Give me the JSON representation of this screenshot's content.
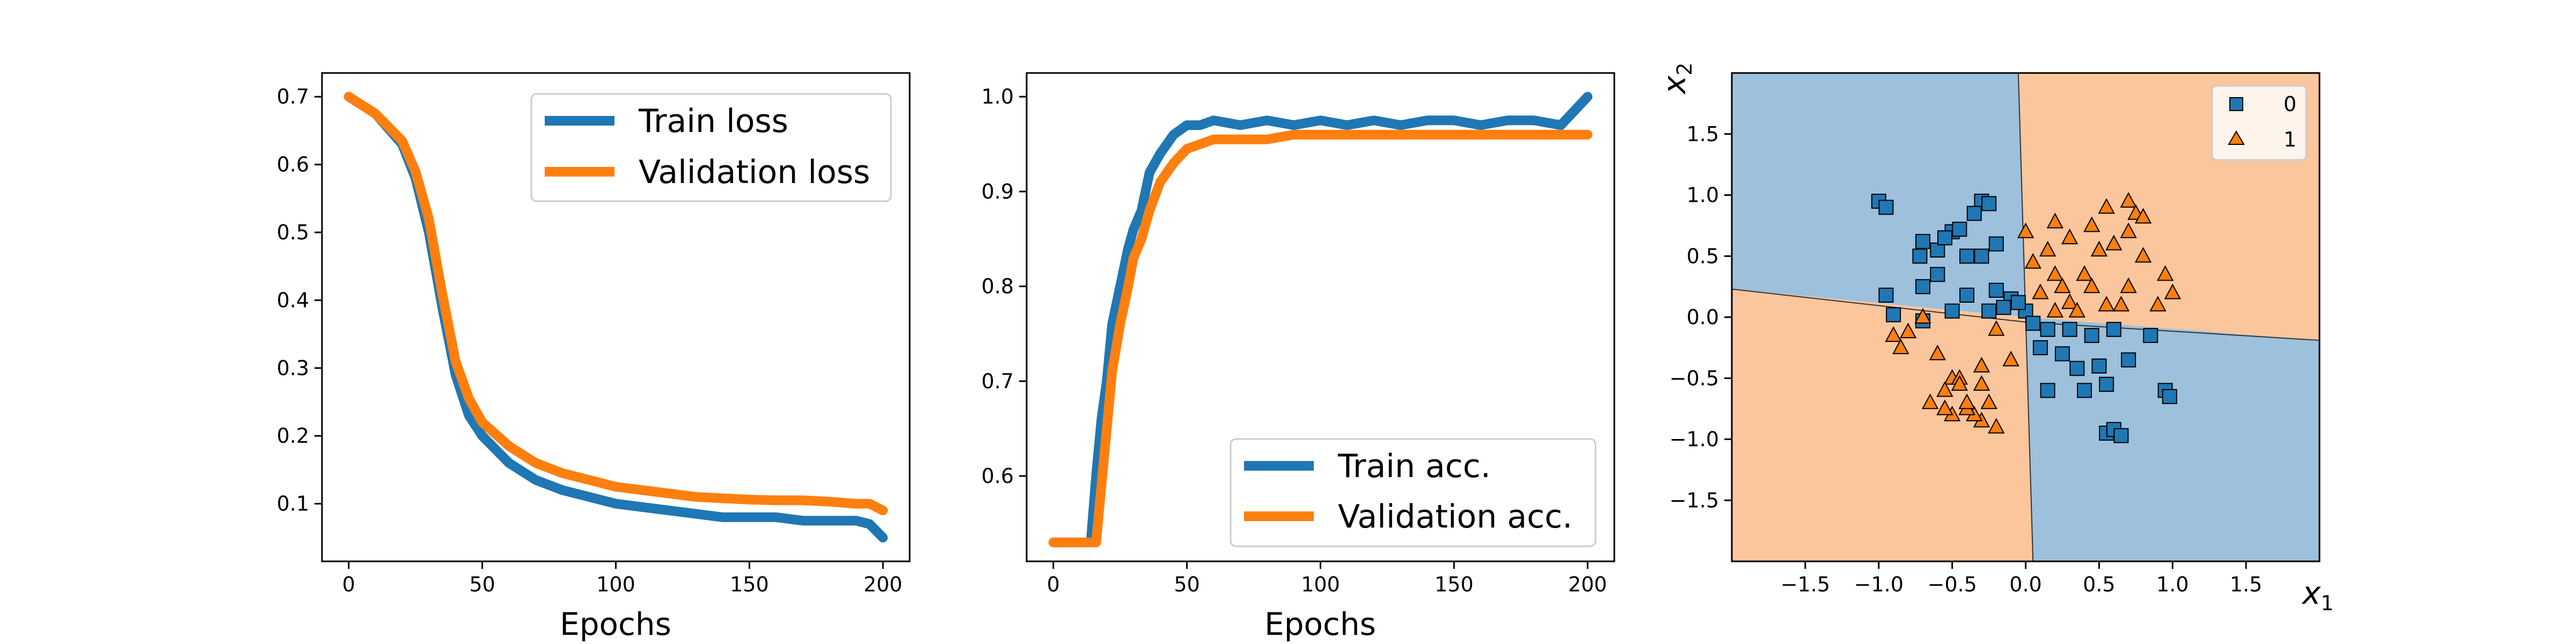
{
  "colors": {
    "blue": "#1f77b4",
    "orange": "#ff7f0e",
    "region_blue": "#9dc0dc",
    "region_orange": "#fcc69c"
  },
  "chart_data": [
    {
      "type": "line",
      "xlabel": "Epochs",
      "ylabel": "",
      "xlim": [
        -10,
        210
      ],
      "ylim": [
        0.015,
        0.735
      ],
      "xticks": [
        "0",
        "50",
        "100",
        "150",
        "200"
      ],
      "yticks": [
        "0.1",
        "0.2",
        "0.3",
        "0.4",
        "0.5",
        "0.6",
        "0.7"
      ],
      "legend_position": "top-right",
      "grid": false,
      "series": [
        {
          "name": "Train loss",
          "color": "#1f77b4",
          "x": [
            0,
            10,
            20,
            25,
            30,
            35,
            40,
            45,
            50,
            60,
            70,
            80,
            90,
            100,
            110,
            120,
            130,
            140,
            150,
            160,
            170,
            180,
            190,
            195,
            200
          ],
          "y": [
            0.7,
            0.675,
            0.63,
            0.58,
            0.5,
            0.39,
            0.29,
            0.23,
            0.2,
            0.16,
            0.135,
            0.12,
            0.11,
            0.1,
            0.095,
            0.09,
            0.085,
            0.08,
            0.08,
            0.08,
            0.075,
            0.075,
            0.075,
            0.07,
            0.05
          ]
        },
        {
          "name": "Validation loss",
          "color": "#ff7f0e",
          "x": [
            0,
            10,
            20,
            25,
            30,
            35,
            40,
            45,
            50,
            60,
            70,
            80,
            90,
            100,
            110,
            120,
            130,
            140,
            150,
            160,
            170,
            180,
            190,
            195,
            200
          ],
          "y": [
            0.7,
            0.675,
            0.635,
            0.59,
            0.52,
            0.41,
            0.31,
            0.255,
            0.22,
            0.185,
            0.16,
            0.145,
            0.135,
            0.125,
            0.12,
            0.115,
            0.11,
            0.108,
            0.106,
            0.105,
            0.105,
            0.103,
            0.1,
            0.1,
            0.09
          ]
        }
      ]
    },
    {
      "type": "line",
      "xlabel": "Epochs",
      "ylabel": "",
      "xlim": [
        -10,
        210
      ],
      "ylim": [
        0.51,
        1.025
      ],
      "xticks": [
        "0",
        "50",
        "100",
        "150",
        "200"
      ],
      "yticks": [
        "0.6",
        "0.7",
        "0.8",
        "0.9",
        "1.0"
      ],
      "legend_position": "bottom-right",
      "grid": false,
      "series": [
        {
          "name": "Train acc.",
          "color": "#1f77b4",
          "x": [
            0,
            14,
            16,
            18,
            20,
            22,
            25,
            28,
            30,
            33,
            36,
            40,
            45,
            50,
            55,
            60,
            70,
            80,
            90,
            100,
            110,
            120,
            130,
            140,
            150,
            160,
            170,
            180,
            190,
            200
          ],
          "y": [
            0.53,
            0.53,
            0.6,
            0.66,
            0.7,
            0.76,
            0.8,
            0.84,
            0.86,
            0.88,
            0.92,
            0.94,
            0.96,
            0.97,
            0.97,
            0.975,
            0.97,
            0.975,
            0.97,
            0.975,
            0.97,
            0.975,
            0.97,
            0.975,
            0.975,
            0.97,
            0.975,
            0.975,
            0.97,
            1.0
          ]
        },
        {
          "name": "Validation acc.",
          "color": "#ff7f0e",
          "x": [
            0,
            16,
            18,
            20,
            22,
            25,
            28,
            30,
            33,
            36,
            40,
            45,
            50,
            55,
            60,
            70,
            80,
            90,
            100,
            110,
            120,
            130,
            140,
            150,
            160,
            170,
            180,
            190,
            200
          ],
          "y": [
            0.53,
            0.53,
            0.59,
            0.65,
            0.71,
            0.76,
            0.8,
            0.83,
            0.85,
            0.88,
            0.91,
            0.93,
            0.945,
            0.95,
            0.955,
            0.955,
            0.955,
            0.96,
            0.96,
            0.96,
            0.96,
            0.96,
            0.96,
            0.96,
            0.96,
            0.96,
            0.96,
            0.96,
            0.96
          ]
        }
      ]
    },
    {
      "type": "scatter",
      "xlabel": "x1",
      "ylabel": "x2",
      "xlim": [
        -2.0,
        2.0
      ],
      "ylim": [
        -2.0,
        2.0
      ],
      "xticks": [
        "−1.5",
        "−1.0",
        "−0.5",
        "0.0",
        "0.5",
        "1.0",
        "1.5"
      ],
      "yticks": [
        "−1.5",
        "−1.0",
        "−0.5",
        "0.0",
        "0.5",
        "1.0",
        "1.5"
      ],
      "legend_position": "top-right",
      "decision_regions": {
        "boundary_vertical": [
          [
            -0.05,
            2.0
          ],
          [
            0.0,
            0.0
          ],
          [
            0.05,
            -2.0
          ]
        ],
        "boundary_horizontal": [
          [
            -2.0,
            0.23
          ],
          [
            0.0,
            -0.04
          ],
          [
            2.0,
            -0.19
          ]
        ],
        "top_left": "0",
        "top_right": "1",
        "bottom_left": "1",
        "bottom_right": "0"
      },
      "series": [
        {
          "name": "0",
          "marker": "square",
          "color": "#1f77b4",
          "points": [
            [
              -1.0,
              0.95
            ],
            [
              -0.95,
              0.9
            ],
            [
              -0.7,
              0.62
            ],
            [
              -0.72,
              0.5
            ],
            [
              -0.6,
              0.55
            ],
            [
              -0.5,
              0.7
            ],
            [
              -0.45,
              0.72
            ],
            [
              -0.3,
              0.95
            ],
            [
              -0.25,
              0.93
            ],
            [
              -0.35,
              0.85
            ],
            [
              -0.2,
              0.6
            ],
            [
              -0.3,
              0.5
            ],
            [
              -0.55,
              0.65
            ],
            [
              -0.4,
              0.5
            ],
            [
              -0.6,
              0.35
            ],
            [
              -0.7,
              0.25
            ],
            [
              -0.95,
              0.18
            ],
            [
              -0.9,
              0.02
            ],
            [
              -0.7,
              -0.03
            ],
            [
              -0.5,
              0.05
            ],
            [
              -0.4,
              0.18
            ],
            [
              -0.2,
              0.22
            ],
            [
              -0.1,
              0.15
            ],
            [
              -0.25,
              0.05
            ],
            [
              -0.15,
              0.08
            ],
            [
              0.0,
              0.05
            ],
            [
              -0.05,
              0.12
            ],
            [
              0.05,
              -0.05
            ],
            [
              0.15,
              -0.1
            ],
            [
              0.3,
              -0.1
            ],
            [
              0.45,
              -0.15
            ],
            [
              0.25,
              -0.3
            ],
            [
              0.35,
              -0.42
            ],
            [
              0.5,
              -0.4
            ],
            [
              0.55,
              -0.55
            ],
            [
              0.7,
              -0.35
            ],
            [
              0.6,
              -0.1
            ],
            [
              0.85,
              -0.15
            ],
            [
              0.1,
              -0.25
            ],
            [
              0.15,
              -0.6
            ],
            [
              0.4,
              -0.6
            ],
            [
              0.55,
              -0.95
            ],
            [
              0.6,
              -0.92
            ],
            [
              0.65,
              -0.97
            ],
            [
              0.95,
              -0.6
            ],
            [
              0.98,
              -0.65
            ]
          ]
        },
        {
          "name": "1",
          "marker": "triangle",
          "color": "#ff7f0e",
          "points": [
            [
              0.0,
              0.7
            ],
            [
              0.2,
              0.78
            ],
            [
              0.3,
              0.65
            ],
            [
              0.15,
              0.55
            ],
            [
              0.05,
              0.45
            ],
            [
              0.2,
              0.35
            ],
            [
              0.1,
              0.2
            ],
            [
              0.3,
              0.12
            ],
            [
              0.2,
              0.05
            ],
            [
              0.4,
              0.35
            ],
            [
              0.5,
              0.55
            ],
            [
              0.45,
              0.75
            ],
            [
              0.55,
              0.9
            ],
            [
              0.7,
              0.95
            ],
            [
              0.75,
              0.85
            ],
            [
              0.8,
              0.82
            ],
            [
              0.7,
              0.7
            ],
            [
              0.6,
              0.6
            ],
            [
              0.8,
              0.5
            ],
            [
              0.95,
              0.35
            ],
            [
              1.0,
              0.2
            ],
            [
              0.9,
              0.1
            ],
            [
              0.7,
              0.25
            ],
            [
              0.55,
              0.1
            ],
            [
              0.65,
              0.1
            ],
            [
              0.45,
              0.25
            ],
            [
              0.35,
              0.05
            ],
            [
              0.25,
              0.25
            ],
            [
              -0.9,
              -0.15
            ],
            [
              -0.85,
              -0.25
            ],
            [
              -0.7,
              0.0
            ],
            [
              -0.6,
              -0.3
            ],
            [
              -0.5,
              -0.5
            ],
            [
              -0.45,
              -0.5
            ],
            [
              -0.3,
              -0.55
            ],
            [
              -0.25,
              -0.7
            ],
            [
              -0.3,
              -0.85
            ],
            [
              -0.35,
              -0.8
            ],
            [
              -0.4,
              -0.75
            ],
            [
              -0.5,
              -0.8
            ],
            [
              -0.55,
              -0.75
            ],
            [
              -0.65,
              -0.7
            ],
            [
              -0.55,
              -0.6
            ],
            [
              -0.4,
              -0.7
            ],
            [
              -0.3,
              -0.4
            ],
            [
              -0.2,
              -0.1
            ],
            [
              -0.1,
              -0.35
            ],
            [
              -0.8,
              -0.12
            ],
            [
              -0.2,
              -0.9
            ],
            [
              -0.45,
              -0.55
            ]
          ]
        }
      ]
    }
  ]
}
